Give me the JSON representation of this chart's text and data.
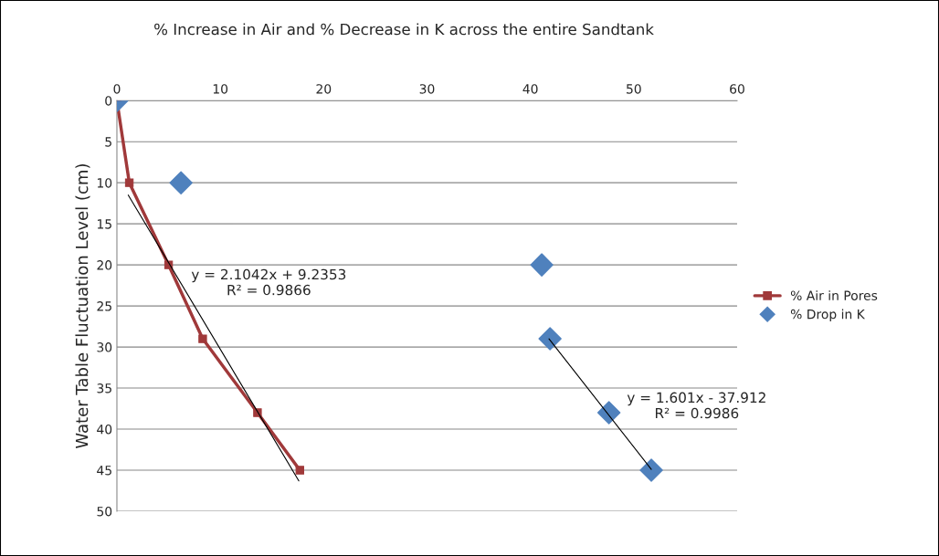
{
  "chart_data": {
    "type": "line",
    "title": "% Increase in Air and % Decrease in K across the entire Sandtank",
    "ylabel": "Water Table Fluctuation Level (cm)",
    "series": [
      {
        "name": "% Air in Pores",
        "marker": "square",
        "color": "#a0393a",
        "x": [
          0,
          1.2,
          5.0,
          8.3,
          13.6,
          17.7
        ],
        "values": [
          0,
          10,
          20,
          29,
          38,
          45
        ]
      },
      {
        "name": "% Drop in K",
        "type": "scatter",
        "marker": "diamond",
        "color": "#4f81bd",
        "x": [
          0,
          6.2,
          41.1,
          41.9,
          47.6,
          51.7
        ],
        "values": [
          0,
          10,
          20,
          29,
          38,
          45
        ]
      },
      {
        "marker": "none",
        "color": "#000000",
        "x": [
          1.1,
          17.6
        ],
        "values": [
          11.5,
          46.3
        ]
      },
      {
        "marker": "none",
        "color": "#000000",
        "x": [
          41.8,
          51.7
        ],
        "values": [
          29,
          44.9
        ]
      }
    ],
    "annotations": [
      "y = 2.1042x + 9.2353\nR² = 0.9866",
      "y = 1.601x - 37.912\nR² = 0.9986"
    ],
    "xlim": [
      0,
      60
    ],
    "xticks": [
      0,
      10,
      20,
      30,
      40,
      50,
      60
    ],
    "ylim": [
      50,
      0
    ],
    "yticks": [
      0,
      5,
      10,
      15,
      20,
      25,
      30,
      35,
      40,
      45,
      50
    ],
    "grid": "y",
    "legend": "right"
  }
}
